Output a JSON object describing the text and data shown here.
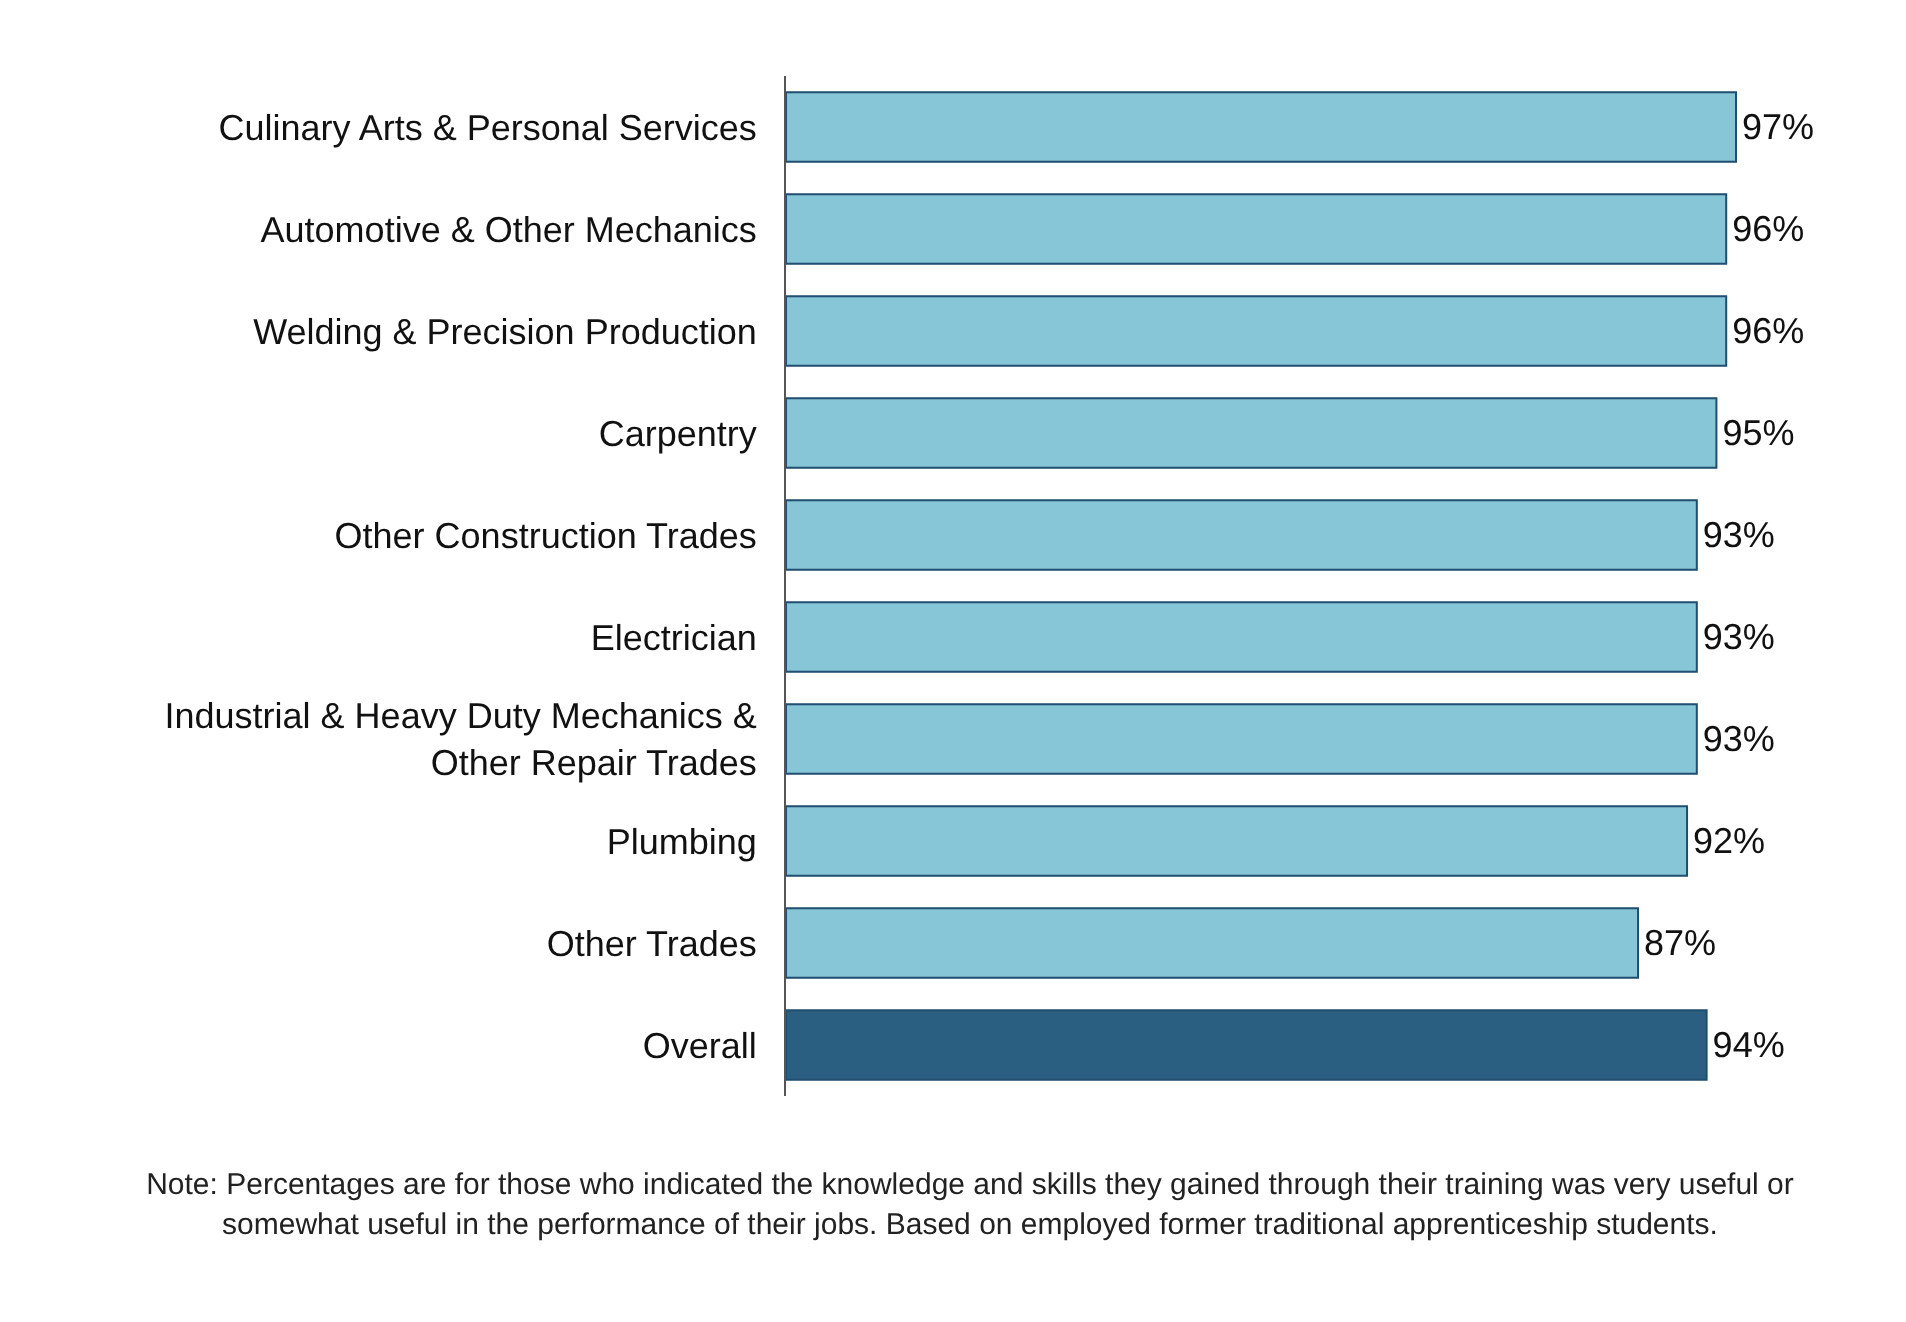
{
  "chart_data": {
    "type": "bar",
    "orientation": "horizontal",
    "categories": [
      "Culinary Arts & Personal Services",
      "Automotive & Other Mechanics",
      "Welding & Precision Production",
      "Carpentry",
      "Other Construction Trades",
      "Electrician",
      "Industrial & Heavy Duty Mechanics &\nOther Repair Trades",
      "Plumbing",
      "Other Trades",
      "Overall"
    ],
    "values": [
      97,
      96,
      96,
      95,
      93,
      93,
      93,
      92,
      87,
      94
    ],
    "value_labels": [
      "97%",
      "96%",
      "96%",
      "95%",
      "93%",
      "93%",
      "93%",
      "92%",
      "87%",
      "94%"
    ],
    "colors": [
      "#86c6d7",
      "#86c6d7",
      "#86c6d7",
      "#86c6d7",
      "#86c6d7",
      "#86c6d7",
      "#86c6d7",
      "#86c6d7",
      "#86c6d7",
      "#2b5f82"
    ],
    "tick_labels": "y",
    "legend": false,
    "annotations": [
      "Note: Percentages are for those who indicated the knowledge and skills they gained through their training was very useful or somewhat useful in the performance of their jobs. Based on employed former traditional apprenticeship students."
    ]
  }
}
